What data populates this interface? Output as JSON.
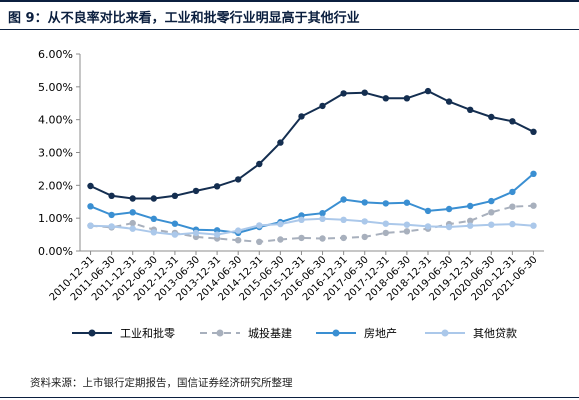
{
  "figure": {
    "title": "图 9：从不良率对比来看，工业和批零行业明显高于其他行业",
    "source": "资料来源：上市银行定期报告，国信证券经济研究所整理"
  },
  "chart_data": {
    "type": "line",
    "categories": [
      "2010-12-31",
      "2011-06-30",
      "2011-12-31",
      "2012-06-30",
      "2012-12-31",
      "2013-06-30",
      "2013-12-31",
      "2014-06-30",
      "2014-12-31",
      "2015-06-30",
      "2015-12-31",
      "2016-06-30",
      "2016-12-31",
      "2017-06-30",
      "2017-12-31",
      "2018-06-30",
      "2018-12-31",
      "2019-06-30",
      "2019-12-31",
      "2020-06-30",
      "2020-12-31",
      "2021-06-30"
    ],
    "y_ticks": [
      "0.00%",
      "1.00%",
      "2.00%",
      "3.00%",
      "4.00%",
      "5.00%",
      "6.00%"
    ],
    "ylim": [
      0,
      0.06
    ],
    "grid": false,
    "legend_position": "bottom",
    "series": [
      {
        "name": "工业和批零",
        "color": "#142e50",
        "marker": "circle",
        "dash": "solid",
        "values": [
          0.0198,
          0.0168,
          0.016,
          0.016,
          0.0168,
          0.0183,
          0.0197,
          0.0218,
          0.0265,
          0.033,
          0.041,
          0.0442,
          0.048,
          0.0482,
          0.0465,
          0.0465,
          0.0487,
          0.0455,
          0.043,
          0.0408,
          0.0395,
          0.0363
        ]
      },
      {
        "name": "城投基建",
        "color": "#a8b0bd",
        "marker": "circle",
        "dash": "dashed",
        "values": [
          0.0077,
          0.0072,
          0.0085,
          0.0065,
          0.0055,
          0.0043,
          0.0038,
          0.0033,
          0.0028,
          0.0035,
          0.004,
          0.0038,
          0.004,
          0.0043,
          0.0055,
          0.006,
          0.0068,
          0.0082,
          0.0092,
          0.0118,
          0.0135,
          0.0138
        ]
      },
      {
        "name": "房地产",
        "color": "#3a8fd2",
        "marker": "circle",
        "dash": "solid",
        "values": [
          0.0136,
          0.011,
          0.0118,
          0.0098,
          0.0083,
          0.0065,
          0.0063,
          0.0055,
          0.0073,
          0.0088,
          0.0108,
          0.0115,
          0.0157,
          0.0148,
          0.0145,
          0.0147,
          0.0122,
          0.0128,
          0.0137,
          0.0152,
          0.018,
          0.0235
        ]
      },
      {
        "name": "其他贷款",
        "color": "#abc8ea",
        "marker": "circle",
        "dash": "solid",
        "values": [
          0.0077,
          0.0075,
          0.0068,
          0.0057,
          0.005,
          0.0055,
          0.005,
          0.0062,
          0.0078,
          0.0082,
          0.0095,
          0.0098,
          0.0095,
          0.009,
          0.0083,
          0.008,
          0.0075,
          0.0073,
          0.0077,
          0.008,
          0.0082,
          0.0077
        ]
      }
    ]
  }
}
